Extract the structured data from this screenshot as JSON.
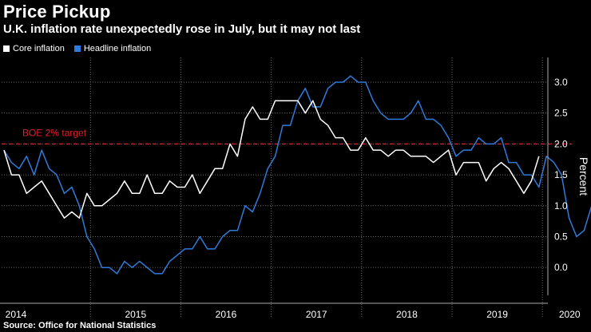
{
  "header": {
    "title": "Price Pickup",
    "subtitle": "U.K. inflation rate unexpectedly rose in July, but it may not last"
  },
  "footer": {
    "source": "Source: Office for National Statistics"
  },
  "colors": {
    "core": "#ffffff",
    "headline": "#2f7bdc",
    "target": "#e0202a",
    "grid": "#6a6a6a"
  },
  "chart_data": {
    "type": "line",
    "title": "Price Pickup",
    "subtitle": "U.K. inflation rate unexpectedly rose in July, but it may not last",
    "xlabel": "",
    "ylabel": "Percent",
    "ylim": [
      -0.45,
      3.4
    ],
    "yticks": [
      0.0,
      0.5,
      1.0,
      1.5,
      2.0,
      2.5,
      3.0
    ],
    "ytick_labels": [
      "0.0",
      "0.5",
      "1.0",
      "1.5",
      "2.0",
      "2.5",
      "3.0"
    ],
    "x_start": "2014-01",
    "x_end": "2020-07",
    "year_labels": [
      "2014",
      "2015",
      "2016",
      "2017",
      "2018",
      "2019",
      "2020"
    ],
    "legend_position": "top-left",
    "grid": "dotted vertical at year starts, dotted horizontal at y ticks",
    "annotations": [
      {
        "text": "BOE 2% target",
        "y": 2.0,
        "style": "dashed"
      }
    ],
    "series": [
      {
        "name": "Core inflation",
        "color": "#ffffff",
        "values": [
          1.9,
          1.5,
          1.5,
          1.2,
          1.3,
          1.4,
          1.2,
          1.0,
          0.8,
          0.9,
          0.8,
          1.2,
          1.0,
          1.0,
          1.1,
          1.2,
          1.4,
          1.2,
          1.2,
          1.5,
          1.2,
          1.2,
          1.4,
          1.3,
          1.3,
          1.5,
          1.2,
          1.4,
          1.6,
          1.6,
          2.0,
          1.8,
          2.4,
          2.6,
          2.4,
          2.4,
          2.7,
          2.7,
          2.7,
          2.7,
          2.5,
          2.7,
          2.4,
          2.3,
          2.1,
          2.1,
          1.9,
          1.9,
          2.1,
          1.9,
          1.9,
          1.8,
          1.9,
          1.9,
          1.8,
          1.8,
          1.8,
          1.7,
          1.8,
          1.9,
          1.5,
          1.7,
          1.7,
          1.7,
          1.4,
          1.6,
          1.7,
          1.6,
          1.4,
          1.2,
          1.4,
          1.8
        ]
      },
      {
        "name": "Headline inflation",
        "color": "#2f7bdc",
        "values": [
          1.9,
          1.7,
          1.6,
          1.8,
          1.5,
          1.9,
          1.6,
          1.5,
          1.2,
          1.3,
          1.0,
          0.5,
          0.3,
          0.0,
          0.0,
          -0.1,
          0.1,
          0.0,
          0.1,
          0.0,
          -0.1,
          -0.1,
          0.1,
          0.2,
          0.3,
          0.3,
          0.5,
          0.3,
          0.3,
          0.5,
          0.6,
          0.6,
          1.0,
          0.9,
          1.2,
          1.6,
          1.8,
          2.3,
          2.3,
          2.7,
          2.9,
          2.6,
          2.6,
          2.9,
          3.0,
          3.0,
          3.1,
          3.0,
          3.0,
          2.7,
          2.5,
          2.4,
          2.4,
          2.4,
          2.5,
          2.7,
          2.4,
          2.4,
          2.3,
          2.1,
          1.8,
          1.9,
          1.9,
          2.1,
          2.0,
          2.0,
          2.1,
          1.7,
          1.7,
          1.5,
          1.5,
          1.3,
          1.8,
          1.7,
          1.5,
          0.8,
          0.5,
          0.6,
          1.0
        ]
      }
    ]
  }
}
